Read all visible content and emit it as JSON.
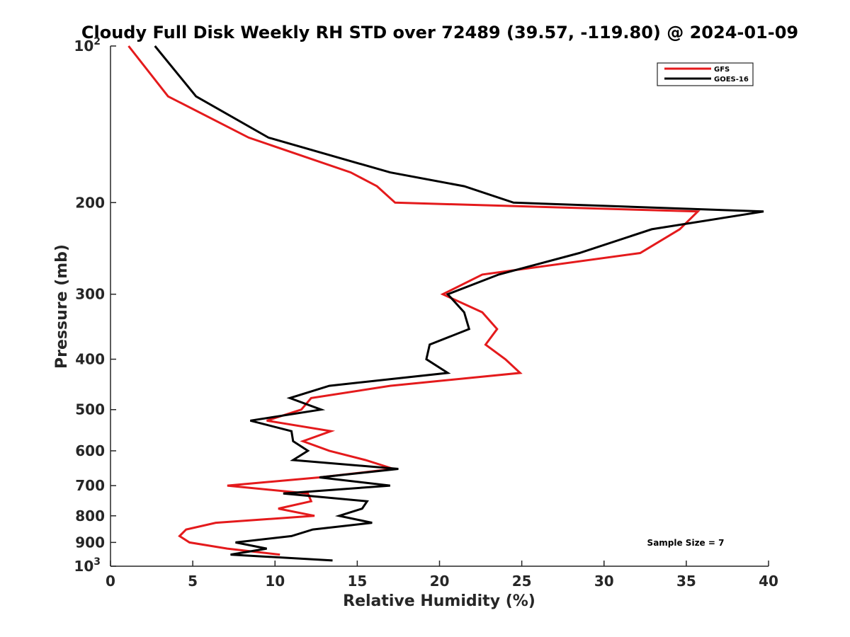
{
  "chart_data": {
    "type": "line",
    "title": "Cloudy Full Disk Weekly RH STD over 72489 (39.57, -119.80) @ 2024-01-09",
    "xlabel": "Relative Humidity (%)",
    "ylabel": "Pressure (mb)",
    "xlim": [
      0,
      40
    ],
    "ylim": [
      100,
      1000
    ],
    "y_scale": "log",
    "y_reversed": true,
    "x_ticks": [
      "0",
      "5",
      "10",
      "15",
      "20",
      "25",
      "30",
      "35",
      "40"
    ],
    "y_ticks": [
      {
        "value": 100,
        "base": "10",
        "exp": "2"
      },
      {
        "value": 200,
        "label": "200"
      },
      {
        "value": 300,
        "label": "300"
      },
      {
        "value": 400,
        "label": "400"
      },
      {
        "value": 500,
        "label": "500"
      },
      {
        "value": 600,
        "label": "600"
      },
      {
        "value": 700,
        "label": "700"
      },
      {
        "value": 800,
        "label": "800"
      },
      {
        "value": 900,
        "label": "900"
      },
      {
        "value": 1000,
        "base": "10",
        "exp": "3"
      }
    ],
    "grid": false,
    "legend_position": "top-right",
    "annotation": "Sample Size = 7",
    "series": [
      {
        "name": "GFS",
        "color": "#e41a1c",
        "points": [
          [
            1.1,
            100
          ],
          [
            3.5,
            125
          ],
          [
            8.4,
            150
          ],
          [
            14.6,
            175
          ],
          [
            16.2,
            186
          ],
          [
            17.3,
            200
          ],
          [
            35.7,
            208
          ],
          [
            34.6,
            225
          ],
          [
            32.2,
            250
          ],
          [
            22.6,
            275
          ],
          [
            20.2,
            300
          ],
          [
            22.6,
            325
          ],
          [
            23.5,
            350
          ],
          [
            22.8,
            375
          ],
          [
            24.0,
            400
          ],
          [
            24.9,
            425
          ],
          [
            17.0,
            450
          ],
          [
            12.2,
            475
          ],
          [
            11.6,
            500
          ],
          [
            9.5,
            525
          ],
          [
            13.4,
            550
          ],
          [
            11.7,
            575
          ],
          [
            13.3,
            600
          ],
          [
            15.5,
            625
          ],
          [
            17.2,
            650
          ],
          [
            12.7,
            675
          ],
          [
            7.1,
            700
          ],
          [
            12.0,
            725
          ],
          [
            12.2,
            750
          ],
          [
            10.2,
            775
          ],
          [
            12.4,
            800
          ],
          [
            6.4,
            825
          ],
          [
            4.6,
            850
          ],
          [
            4.2,
            875
          ],
          [
            4.8,
            900
          ],
          [
            7.1,
            925
          ],
          [
            10.3,
            950
          ]
        ]
      },
      {
        "name": "GOES-16",
        "color": "#000000",
        "points": [
          [
            2.7,
            100
          ],
          [
            5.2,
            125
          ],
          [
            9.6,
            150
          ],
          [
            17.0,
            175
          ],
          [
            21.5,
            186
          ],
          [
            24.5,
            200
          ],
          [
            39.7,
            208
          ],
          [
            32.9,
            225
          ],
          [
            28.5,
            250
          ],
          [
            23.6,
            275
          ],
          [
            20.5,
            300
          ],
          [
            21.5,
            325
          ],
          [
            21.8,
            350
          ],
          [
            19.4,
            375
          ],
          [
            19.2,
            400
          ],
          [
            20.5,
            425
          ],
          [
            13.3,
            450
          ],
          [
            10.9,
            475
          ],
          [
            12.8,
            500
          ],
          [
            8.5,
            525
          ],
          [
            11.0,
            550
          ],
          [
            11.1,
            575
          ],
          [
            12.0,
            600
          ],
          [
            11.1,
            625
          ],
          [
            17.5,
            650
          ],
          [
            12.7,
            675
          ],
          [
            17.0,
            700
          ],
          [
            10.5,
            725
          ],
          [
            15.6,
            750
          ],
          [
            15.3,
            775
          ],
          [
            13.9,
            800
          ],
          [
            15.9,
            825
          ],
          [
            12.3,
            850
          ],
          [
            11.0,
            875
          ],
          [
            7.6,
            900
          ],
          [
            9.5,
            925
          ],
          [
            7.3,
            950
          ],
          [
            13.5,
            975
          ]
        ]
      }
    ]
  }
}
